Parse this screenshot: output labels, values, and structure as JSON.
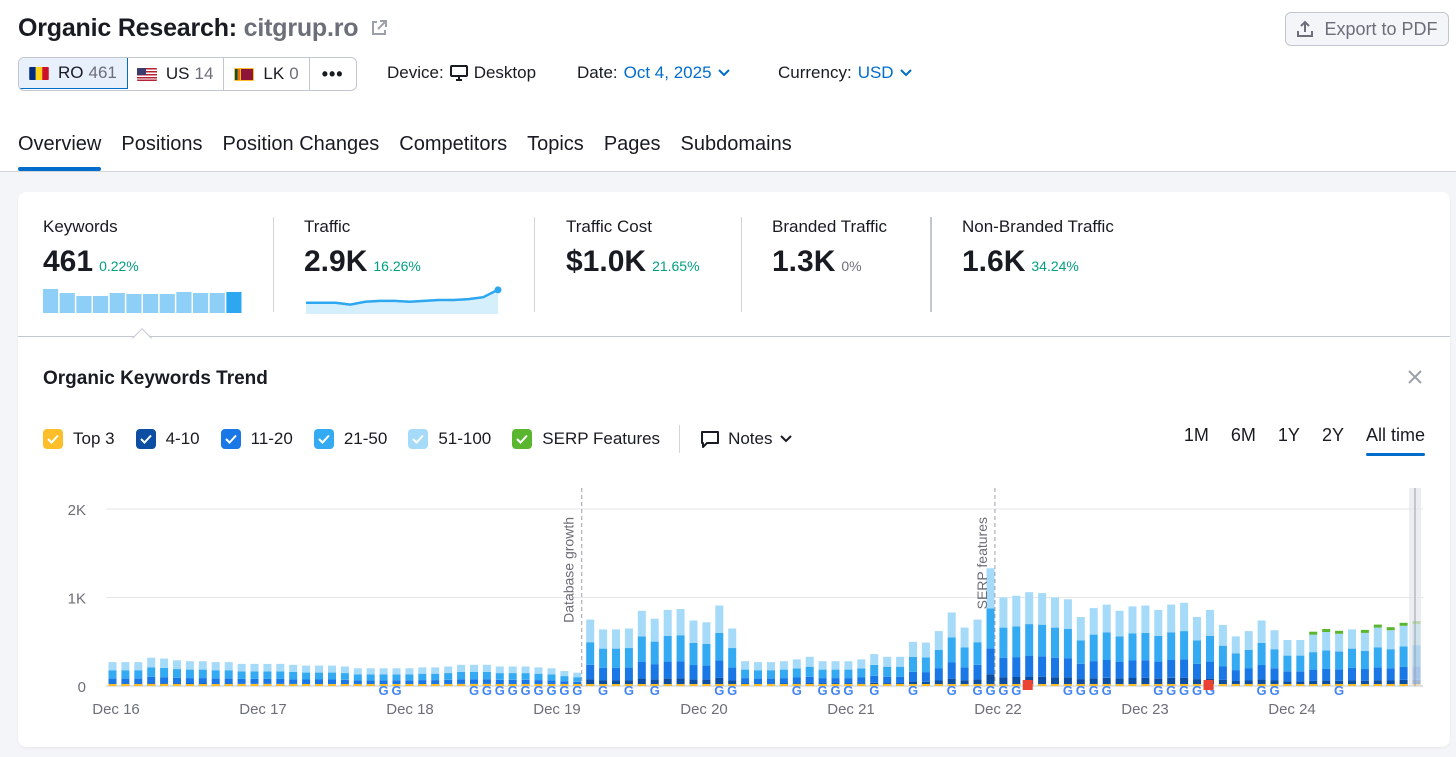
{
  "header": {
    "title_prefix": "Organic Research:",
    "domain": "citgrup.ro",
    "export_label": "Export to PDF"
  },
  "databases": [
    {
      "code": "RO",
      "count": "461"
    },
    {
      "code": "US",
      "count": "14"
    },
    {
      "code": "LK",
      "count": "0"
    }
  ],
  "more_label": "•••",
  "device": {
    "label": "Device:",
    "value": "Desktop"
  },
  "date": {
    "label": "Date:",
    "value": "Oct 4, 2025"
  },
  "currency": {
    "label": "Currency:",
    "value": "USD"
  },
  "tabs": [
    "Overview",
    "Positions",
    "Position Changes",
    "Competitors",
    "Topics",
    "Pages",
    "Subdomains"
  ],
  "metrics": [
    {
      "label": "Keywords",
      "value": "461",
      "delta": "0.22%"
    },
    {
      "label": "Traffic",
      "value": "2.9K",
      "delta": "16.26%"
    },
    {
      "label": "Traffic Cost",
      "value": "$1.0K",
      "delta": "21.65%"
    },
    {
      "label": "Branded Traffic",
      "value": "1.3K",
      "delta": "0%"
    },
    {
      "label": "Non-Branded Traffic",
      "value": "1.6K",
      "delta": "34.24%"
    }
  ],
  "chart_title": "Organic Keywords Trend",
  "legend": [
    {
      "label": "Top 3",
      "color": "#fcbf2a"
    },
    {
      "label": "4-10",
      "color": "#0b4ea2"
    },
    {
      "label": "11-20",
      "color": "#1a78e6"
    },
    {
      "label": "21-50",
      "color": "#34aaf2"
    },
    {
      "label": "51-100",
      "color": "#a6daf9"
    },
    {
      "label": "SERP Features",
      "color": "#59b62e"
    }
  ],
  "notes_label": "Notes",
  "ranges": [
    "1M",
    "6M",
    "1Y",
    "2Y",
    "All time"
  ],
  "colors": {
    "accent": "#006dca",
    "positive": "#009f81"
  },
  "chart_data": {
    "type": "bar",
    "stacked": true,
    "x_tick_labels": [
      "Dec 16",
      "Dec 17",
      "Dec 18",
      "Dec 19",
      "Dec 20",
      "Dec 21",
      "Dec 22",
      "Dec 23",
      "Dec 24"
    ],
    "y_ticks": [
      "0",
      "1K",
      "2K"
    ],
    "ylim": [
      0,
      2200
    ],
    "annotations": [
      "Database growth",
      "SERP features"
    ],
    "series_colors": [
      "#0b4ea2",
      "#1a78e6",
      "#34aaf2",
      "#a6daf9"
    ],
    "totals": [
      270,
      270,
      270,
      320,
      310,
      290,
      280,
      280,
      270,
      270,
      250,
      250,
      250,
      250,
      240,
      230,
      230,
      230,
      220,
      200,
      200,
      200,
      200,
      200,
      210,
      210,
      220,
      240,
      240,
      240,
      220,
      220,
      220,
      210,
      200,
      170,
      150,
      750,
      640,
      640,
      650,
      850,
      760,
      860,
      870,
      740,
      720,
      910,
      650,
      280,
      270,
      270,
      280,
      300,
      330,
      280,
      280,
      280,
      300,
      360,
      330,
      330,
      500,
      490,
      620,
      830,
      660,
      750,
      1330,
      1000,
      1020,
      1060,
      1050,
      1000,
      980,
      780,
      880,
      920,
      850,
      900,
      910,
      860,
      920,
      940,
      780,
      860,
      690,
      560,
      620,
      740,
      630,
      520,
      520,
      580,
      610,
      590,
      640,
      600,
      660,
      630,
      680,
      700
    ],
    "serp_tops": [
      0,
      0,
      0,
      0,
      0,
      0,
      0,
      0,
      0,
      0,
      0,
      0,
      0,
      0,
      0,
      0,
      0,
      0,
      0,
      0,
      0,
      0,
      0,
      0,
      0,
      0,
      0,
      0,
      0,
      0,
      0,
      0,
      0,
      0,
      0,
      0,
      0,
      0,
      0,
      0,
      0,
      0,
      0,
      0,
      0,
      0,
      0,
      0,
      0,
      0,
      0,
      0,
      0,
      0,
      0,
      0,
      0,
      0,
      0,
      0,
      0,
      0,
      0,
      0,
      0,
      0,
      0,
      0,
      0,
      0,
      0,
      0,
      0,
      0,
      0,
      0,
      0,
      0,
      0,
      0,
      0,
      0,
      0,
      0,
      0,
      0,
      0,
      0,
      0,
      0,
      0,
      0,
      0,
      1,
      1,
      1,
      0,
      1,
      1,
      1,
      1,
      1,
      1,
      1
    ],
    "mini_keywords": [
      330,
      270,
      240,
      240,
      280,
      260,
      260,
      260,
      290,
      280,
      280,
      290
    ],
    "mini_traffic": [
      300,
      300,
      300,
      290,
      305,
      310,
      310,
      305,
      310,
      315,
      315,
      320,
      330,
      370
    ]
  }
}
